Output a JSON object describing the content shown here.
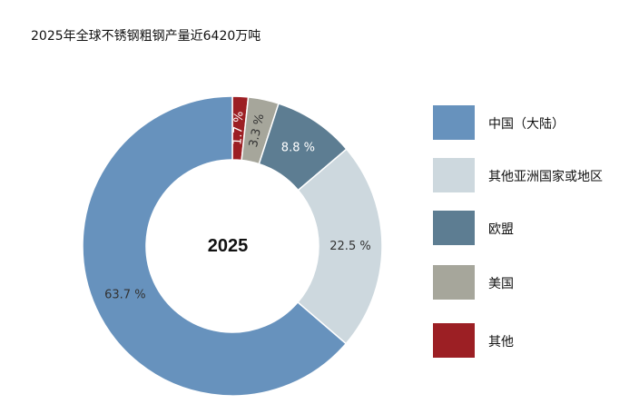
{
  "title": "2025年全球不锈钢粗钢产量近6420万吨",
  "chart_data": {
    "type": "pie",
    "center_label": "2025",
    "unit": "%",
    "series": [
      {
        "name": "中国（大陆）",
        "value": 63.7,
        "label": "63.7 %",
        "color": "#6792bd"
      },
      {
        "name": "其他亚洲国家或地区",
        "value": 22.5,
        "label": "22.5 %",
        "color": "#cdd8de"
      },
      {
        "name": "欧盟",
        "value": 8.8,
        "label": "8.8 %",
        "color": "#5d7d92"
      },
      {
        "name": "美国",
        "value": 3.3,
        "label": "3.3 %",
        "color": "#a6a69b"
      },
      {
        "name": "其他",
        "value": 1.7,
        "label": "1.7 %",
        "color": "#9c1f24"
      }
    ],
    "slice_order": [
      4,
      3,
      2,
      1,
      0
    ],
    "legend_position": "right"
  }
}
